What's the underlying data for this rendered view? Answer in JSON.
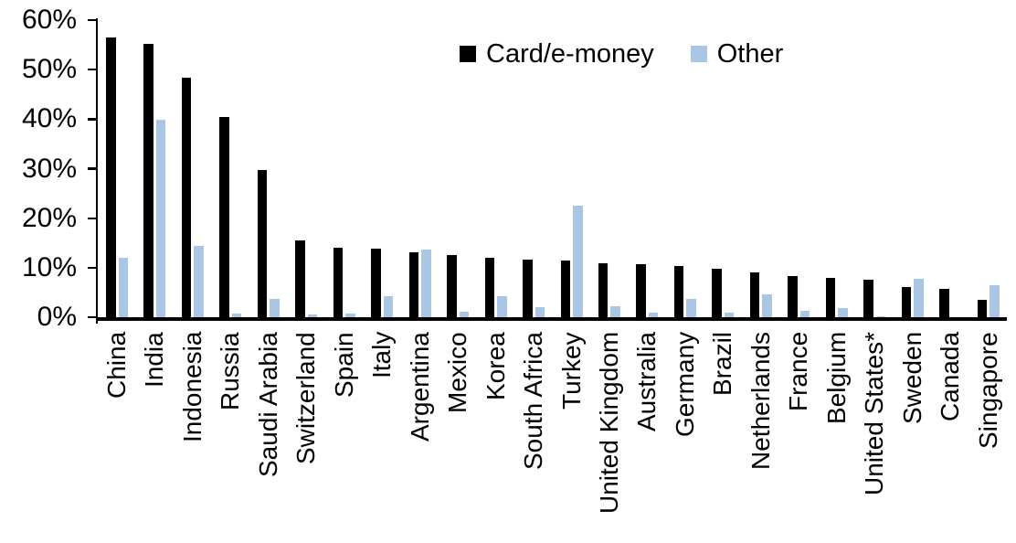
{
  "chart_data": {
    "type": "bar",
    "title": "",
    "xlabel": "",
    "ylabel": "",
    "ylim": [
      0,
      60
    ],
    "ytick_step": 10,
    "ytick_labels": [
      "0%",
      "10%",
      "20%",
      "30%",
      "40%",
      "50%",
      "60%"
    ],
    "grid": false,
    "legend_position": "top-center",
    "categories": [
      "China",
      "India",
      "Indonesia",
      "Russia",
      "Saudi Arabia",
      "Switzerland",
      "Spain",
      "Italy",
      "Argentina",
      "Mexico",
      "Korea",
      "South Africa",
      "Turkey",
      "United Kingdom",
      "Australia",
      "Germany",
      "Brazil",
      "Netherlands",
      "France",
      "Belgium",
      "United States*",
      "Sweden",
      "Canada",
      "Singapore"
    ],
    "series": [
      {
        "name": "Card/e-money",
        "color": "#000000",
        "values": [
          56.4,
          55.1,
          48.3,
          40.5,
          29.8,
          15.5,
          14.0,
          13.9,
          13.2,
          12.6,
          12.1,
          11.7,
          11.5,
          10.9,
          10.7,
          10.4,
          9.8,
          9.0,
          8.4,
          7.9,
          7.6,
          6.2,
          5.7,
          3.6
        ]
      },
      {
        "name": "Other",
        "color": "#A9C7E4",
        "values": [
          12.1,
          39.8,
          14.4,
          0.8,
          3.8,
          0.6,
          0.8,
          4.3,
          13.7,
          1.1,
          4.3,
          2.0,
          22.6,
          2.2,
          0.9,
          3.7,
          1.0,
          4.6,
          1.4,
          1.9,
          0.2,
          7.7,
          0.0,
          6.5
        ]
      }
    ]
  },
  "legend": {
    "items": [
      {
        "label": "Card/e-money",
        "color": "#000000"
      },
      {
        "label": "Other",
        "color": "#A9C7E4"
      }
    ]
  }
}
